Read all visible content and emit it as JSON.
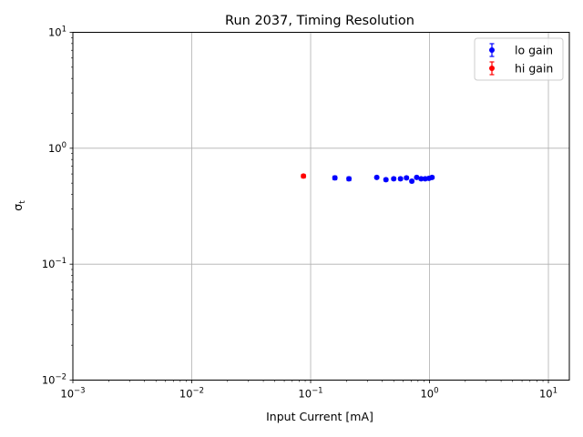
{
  "chart_data": {
    "type": "scatter",
    "title": "Run 2037, Timing Resolution",
    "xlabel": "Input Current [mA]",
    "ylabel": "σ",
    "ylabel_sub": "t",
    "xscale": "log",
    "yscale": "log",
    "xlim": [
      0.001,
      15
    ],
    "ylim": [
      0.01,
      10
    ],
    "grid": true,
    "legend_position": "top-right",
    "x_major_ticks": [
      {
        "value": 0.001,
        "base": "10",
        "exp": "−3"
      },
      {
        "value": 0.01,
        "base": "10",
        "exp": "−2"
      },
      {
        "value": 0.1,
        "base": "10",
        "exp": "−1"
      },
      {
        "value": 1,
        "base": "10",
        "exp": "0"
      },
      {
        "value": 10,
        "base": "10",
        "exp": "1"
      }
    ],
    "y_major_ticks": [
      {
        "value": 0.01,
        "base": "10",
        "exp": "−2"
      },
      {
        "value": 0.1,
        "base": "10",
        "exp": "−1"
      },
      {
        "value": 1,
        "base": "10",
        "exp": "0"
      },
      {
        "value": 10,
        "base": "10",
        "exp": "1"
      }
    ],
    "series": [
      {
        "name": "lo gain",
        "color": "#0000ff",
        "points": [
          {
            "x": 0.16,
            "y": 0.555,
            "err": 0.02
          },
          {
            "x": 0.21,
            "y": 0.545,
            "err": 0.02
          },
          {
            "x": 0.36,
            "y": 0.56,
            "err": 0.015
          },
          {
            "x": 0.43,
            "y": 0.535,
            "err": 0.015
          },
          {
            "x": 0.5,
            "y": 0.545,
            "err": 0.015
          },
          {
            "x": 0.57,
            "y": 0.545,
            "err": 0.015
          },
          {
            "x": 0.64,
            "y": 0.555,
            "err": 0.015
          },
          {
            "x": 0.71,
            "y": 0.52,
            "err": 0.015
          },
          {
            "x": 0.78,
            "y": 0.56,
            "err": 0.015
          },
          {
            "x": 0.85,
            "y": 0.545,
            "err": 0.015
          },
          {
            "x": 0.92,
            "y": 0.545,
            "err": 0.015
          },
          {
            "x": 0.99,
            "y": 0.55,
            "err": 0.015
          },
          {
            "x": 1.05,
            "y": 0.56,
            "err": 0.015
          }
        ]
      },
      {
        "name": "hi gain",
        "color": "#ff0000",
        "points": [
          {
            "x": 0.087,
            "y": 0.575,
            "err": 0.02
          }
        ]
      }
    ]
  }
}
